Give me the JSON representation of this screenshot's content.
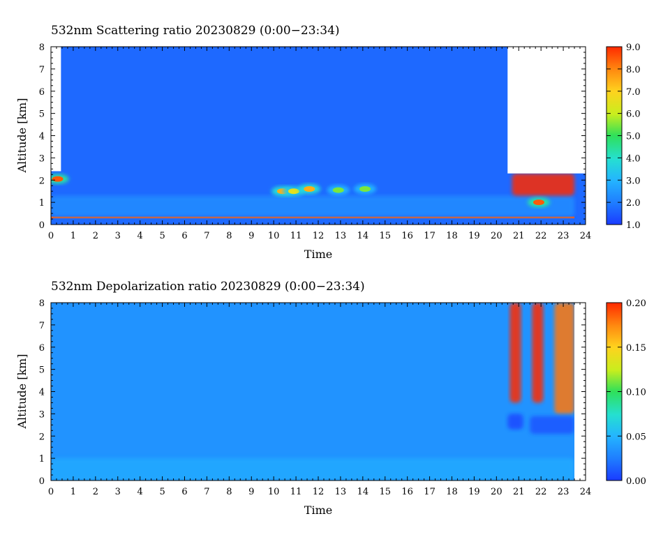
{
  "chart_data": [
    {
      "type": "heatmap",
      "title": "532nm Scattering ratio  20230829 (0:00−23:34)",
      "xlabel": "Time",
      "ylabel": "Altitude [km]",
      "xlim": [
        0,
        24
      ],
      "ylim": [
        0,
        8
      ],
      "x_ticks": [
        "0",
        "1",
        "2",
        "3",
        "4",
        "5",
        "6",
        "7",
        "8",
        "9",
        "10",
        "11",
        "12",
        "13",
        "14",
        "15",
        "16",
        "17",
        "18",
        "19",
        "20",
        "21",
        "22",
        "23",
        "24"
      ],
      "y_ticks": [
        "0",
        "1",
        "2",
        "3",
        "4",
        "5",
        "6",
        "7",
        "8"
      ],
      "colorbar": {
        "range": [
          1.0,
          9.0
        ],
        "ticks": [
          "1.0",
          "2.0",
          "3.0",
          "4.0",
          "5.0",
          "6.0",
          "7.0",
          "8.0",
          "9.0"
        ]
      },
      "background_value": 1.7,
      "no_data_regions": [
        {
          "x0": 20.5,
          "x1": 24,
          "y0": 2.3,
          "y1": 8
        },
        {
          "x0": 0,
          "x1": 0.45,
          "y0": 2.4,
          "y1": 8
        }
      ],
      "features": [
        {
          "name": "near-surface layer",
          "x0": 0,
          "x1": 23.5,
          "y0": 0.28,
          "y1": 0.36,
          "value": 8.5
        },
        {
          "name": "boundary layer",
          "x0": 0,
          "x1": 23.5,
          "y0": 0.36,
          "y1": 1.3,
          "value": 2.3
        },
        {
          "name": "cloud 00h",
          "x": 0.3,
          "y": 2.05,
          "value": 8.5
        },
        {
          "name": "cloud 10.4h",
          "x": 10.4,
          "y": 1.5,
          "value": 7.5
        },
        {
          "name": "cloud 10.9h",
          "x": 10.9,
          "y": 1.5,
          "value": 6.5
        },
        {
          "name": "cloud 11.6h",
          "x": 11.6,
          "y": 1.6,
          "value": 7.5
        },
        {
          "name": "cloud 12.9h",
          "x": 12.9,
          "y": 1.55,
          "value": 5.5
        },
        {
          "name": "cloud 14.1h",
          "x": 14.1,
          "y": 1.6,
          "value": 5.5
        },
        {
          "name": "cloud 21-23.5h",
          "x0": 20.7,
          "x1": 23.5,
          "y0": 1.3,
          "y1": 2.3,
          "value": 9.0
        },
        {
          "name": "cloud 22h",
          "x": 21.9,
          "y": 1.0,
          "value": 8.5
        }
      ]
    },
    {
      "type": "heatmap",
      "title": "532nm Depolarization ratio  20230829 (0:00−23:34)",
      "xlabel": "Time",
      "ylabel": "Altitude [km]",
      "xlim": [
        0,
        24
      ],
      "ylim": [
        0,
        8
      ],
      "x_ticks": [
        "0",
        "1",
        "2",
        "3",
        "4",
        "5",
        "6",
        "7",
        "8",
        "9",
        "10",
        "11",
        "12",
        "13",
        "14",
        "15",
        "16",
        "17",
        "18",
        "19",
        "20",
        "21",
        "22",
        "23",
        "24"
      ],
      "y_ticks": [
        "0",
        "1",
        "2",
        "3",
        "4",
        "5",
        "6",
        "7",
        "8"
      ],
      "colorbar": {
        "range": [
          0.0,
          0.2
        ],
        "ticks": [
          "0.00",
          "0.05",
          "0.10",
          "0.15",
          "0.20"
        ]
      },
      "background_value": 0.035,
      "no_data_regions": [
        {
          "x0": 23.5,
          "x1": 24,
          "y0": 0,
          "y1": 8
        }
      ],
      "features": [
        {
          "name": "plume 20.9h",
          "x0": 20.6,
          "x1": 21.1,
          "y0": 3.5,
          "y1": 8,
          "value": 0.2
        },
        {
          "name": "plume 21.9h",
          "x0": 21.6,
          "x1": 22.1,
          "y0": 3.5,
          "y1": 8,
          "value": 0.2
        },
        {
          "name": "plume 23h",
          "x0": 22.6,
          "x1": 23.5,
          "y0": 3.0,
          "y1": 8,
          "value": 0.18
        },
        {
          "name": "low patch 20.9h",
          "x0": 20.5,
          "x1": 21.2,
          "y0": 2.3,
          "y1": 3.0,
          "value": 0.005
        },
        {
          "name": "low patch 22.4h",
          "x0": 21.5,
          "x1": 23.5,
          "y0": 2.1,
          "y1": 2.9,
          "value": 0.01
        },
        {
          "name": "boundary layer",
          "x0": 0,
          "x1": 23.5,
          "y0": 0,
          "y1": 1.0,
          "value": 0.045
        }
      ]
    }
  ]
}
